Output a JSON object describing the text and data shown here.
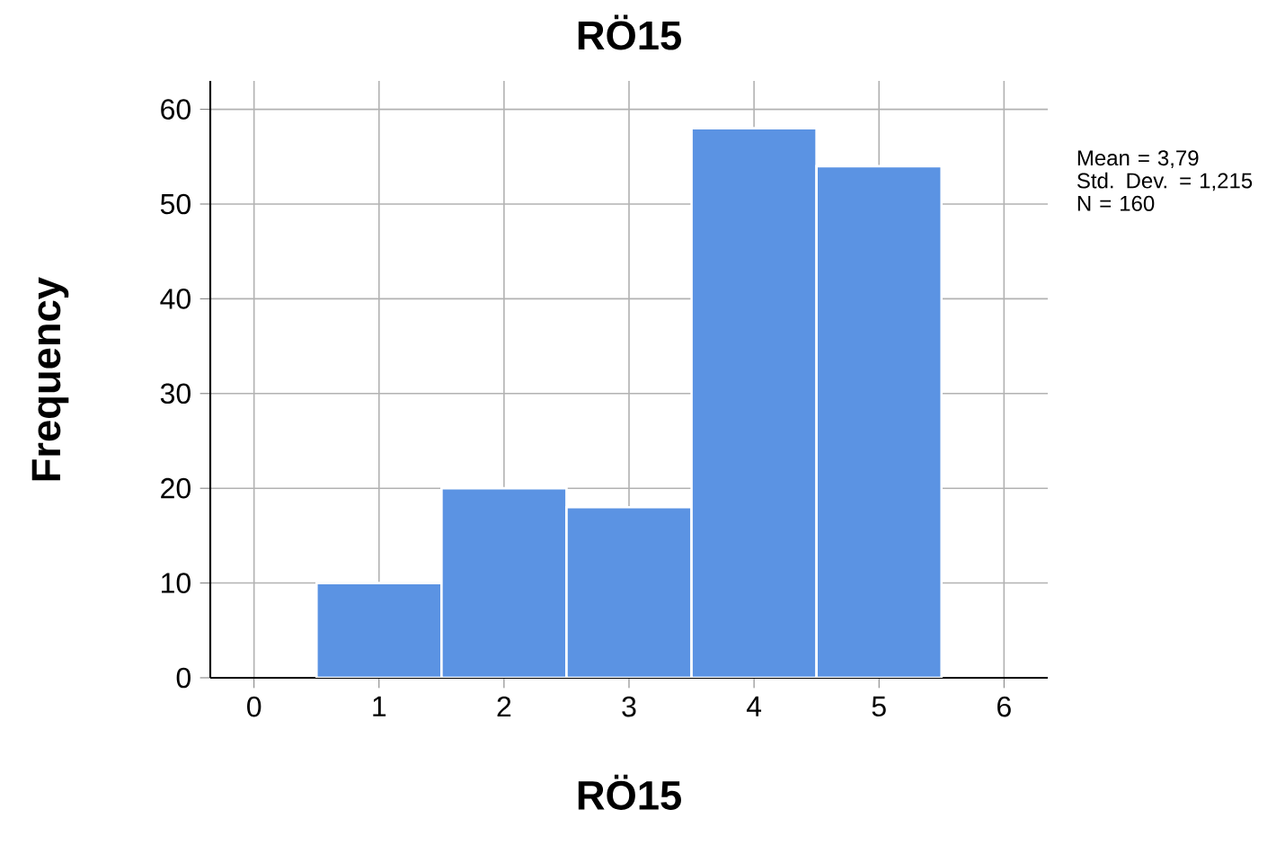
{
  "chart_data": {
    "type": "histogram",
    "title": "RÖ15",
    "xlabel": "RÖ15",
    "ylabel": "Frequency",
    "bins": [
      0.5,
      1.5,
      2.5,
      3.5,
      4.5,
      5.5
    ],
    "values": [
      10,
      20,
      18,
      58,
      54
    ],
    "color": "#5b93e3",
    "xlim": [
      -0.35,
      6.35
    ],
    "xticks": [
      0,
      1,
      2,
      3,
      4,
      5,
      6
    ],
    "ylim": [
      0,
      63
    ],
    "yticks": [
      0,
      10,
      20,
      30,
      40,
      50,
      60
    ],
    "grid": true,
    "annotations": [
      "Mean = 3,79",
      "Std. Dev. = 1,215",
      "N = 160"
    ]
  }
}
